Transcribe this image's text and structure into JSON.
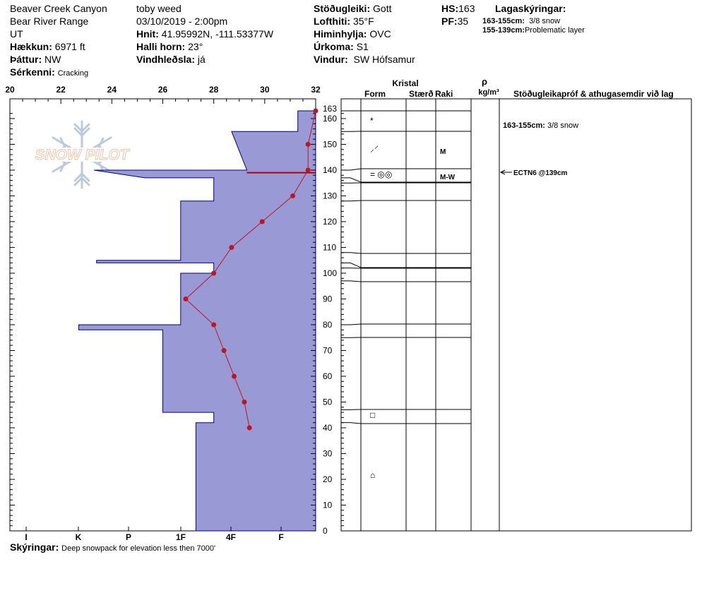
{
  "header": {
    "location": "Beaver Creek Canyon",
    "range": "Bear River Range",
    "state": "UT",
    "elevation_label": "Hækkun:",
    "elevation": "6971 ft",
    "aspect_label": "Þáttur:",
    "aspect": "NW",
    "features_label": "Sérkenni:",
    "features": "Cracking",
    "observer": "toby weed",
    "datetime": "03/10/2019 - 2:00pm",
    "coords_label": "Hnit:",
    "coords": "41.95992N, -111.53377W",
    "slope_label": "Halli horn:",
    "slope": "23°",
    "wind_loading_label": "Vindhleðsla:",
    "wind_loading": "já",
    "stability_label": "Stöðugleiki:",
    "stability": "Gott",
    "air_temp_label": "Lofthiti:",
    "air_temp": "35°F",
    "sky_label": "Himinhylja:",
    "sky": "OVC",
    "precip_label": "Úrkoma:",
    "precip": "S1",
    "wind_label": "Vindur:",
    "wind": "SW Hófsamur",
    "hs_label": "HS:",
    "hs": "163",
    "pf_label": "PF:",
    "pf": "35",
    "layer_notes_label": "Lagaskýringar:",
    "layer_notes": [
      {
        "range": "163-155cm:",
        "text": "3/8 snow"
      },
      {
        "range": "155-139cm:",
        "text": "Problematic layer"
      }
    ]
  },
  "watermark": "SNOW PILOT",
  "footer": {
    "comments_label": "Skýringar:",
    "comments": "Deep snowpack for elevation less then 7000'"
  },
  "table_headers": {
    "crystal": "Kristal",
    "form": "Form",
    "size": "Stærð",
    "moisture": "Raki",
    "density_symbol": "ρ",
    "density_unit": "kg/m³",
    "stability_tests": "Stöðugleikapróf & athugasemdir við lag"
  },
  "grain_rows": [
    {
      "depth": 160,
      "form": "*",
      "moisture": ""
    },
    {
      "depth": 148,
      "form": "⸝⸍",
      "moisture": "M"
    },
    {
      "depth": 138,
      "form": "= ◎◎",
      "moisture": "M-W"
    },
    {
      "depth": 44,
      "form": "□",
      "moisture": ""
    },
    {
      "depth": 20,
      "form": "⌂",
      "moisture": ""
    }
  ],
  "layer_comments": [
    {
      "depth": 159,
      "text": "163-155cm:",
      "text2": "3/8 snow"
    }
  ],
  "test_results": [
    {
      "depth": 139,
      "text": "ECTN6 @139cm"
    }
  ],
  "layer_boundaries": [
    163,
    155,
    140,
    137,
    135,
    128,
    108,
    104,
    102,
    97,
    80,
    75,
    47,
    42
  ],
  "chart_data": {
    "type": "snow-profile",
    "temp_axis": {
      "min": 20,
      "max": 32,
      "ticks": [
        20,
        22,
        24,
        26,
        28,
        30,
        32
      ]
    },
    "depth_axis": {
      "min": 0,
      "max": 163,
      "ticks": [
        0,
        10,
        20,
        30,
        40,
        50,
        60,
        70,
        80,
        90,
        100,
        110,
        120,
        130,
        140,
        150,
        160,
        163
      ]
    },
    "hardness_ticks": [
      "I",
      "K",
      "P",
      "1F",
      "4F",
      "F"
    ],
    "hardness_polygon": [
      [
        163,
        31.3
      ],
      [
        155,
        31.3
      ],
      [
        155,
        28.7
      ],
      [
        140,
        29.3
      ],
      [
        140,
        23.3
      ],
      [
        137,
        25.3
      ],
      [
        137,
        28.0
      ],
      [
        128,
        28.0
      ],
      [
        128,
        26.7
      ],
      [
        105,
        26.7
      ],
      [
        105,
        23.4
      ],
      [
        104,
        23.4
      ],
      [
        104,
        28.0
      ],
      [
        100,
        28.0
      ],
      [
        100,
        26.7
      ],
      [
        80,
        26.7
      ],
      [
        80,
        22.7
      ],
      [
        78,
        22.7
      ],
      [
        78,
        26.0
      ],
      [
        46,
        26.0
      ],
      [
        46,
        28.0
      ],
      [
        42,
        28.0
      ],
      [
        42,
        27.3
      ],
      [
        0,
        27.3
      ]
    ],
    "temperature_profile": [
      [
        163,
        32.0
      ],
      [
        150,
        31.7
      ],
      [
        140,
        31.7
      ],
      [
        130,
        31.1
      ],
      [
        120,
        29.9
      ],
      [
        110,
        28.7
      ],
      [
        100,
        28.0
      ],
      [
        90,
        26.9
      ],
      [
        80,
        28.0
      ],
      [
        70,
        28.4
      ],
      [
        60,
        28.8
      ],
      [
        50,
        29.2
      ],
      [
        40,
        29.4
      ]
    ],
    "marked_layer": {
      "depth": 139,
      "temp_from": 29.3,
      "temp_to": 32
    },
    "colors": {
      "hardness_fill": "#9999d6",
      "hardness_stroke": "#000080",
      "temperature": "#c0141e",
      "marked_layer": "#b00000"
    }
  }
}
